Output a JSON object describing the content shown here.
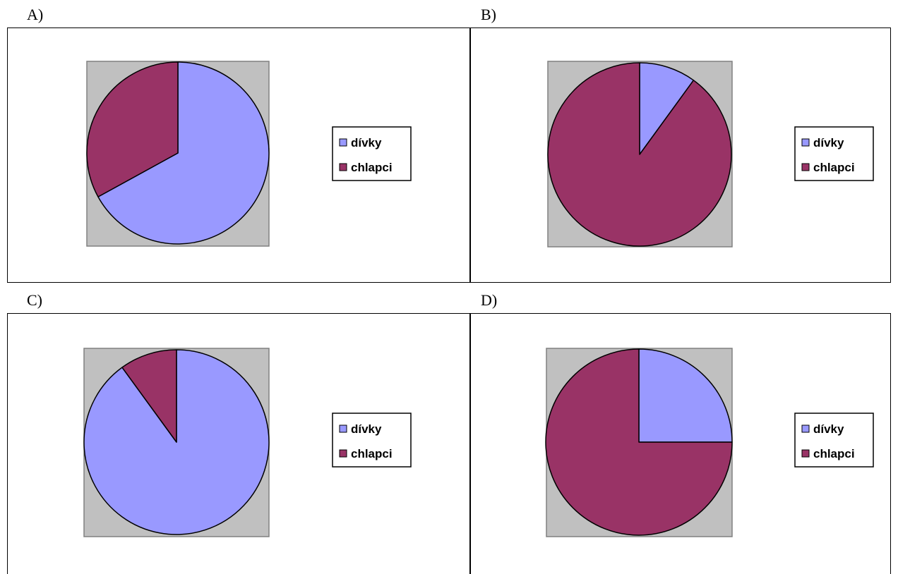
{
  "panels": [
    {
      "label": "A)"
    },
    {
      "label": "B)"
    },
    {
      "label": "C)"
    },
    {
      "label": "D)"
    }
  ],
  "colors": {
    "divky": "#9999ff",
    "chlapci": "#993366",
    "plot_area": "#c0c0c0"
  },
  "chart_data": [
    {
      "type": "pie",
      "panel": "A)",
      "categories": [
        "dívky",
        "chlapci"
      ],
      "values": [
        67,
        33
      ],
      "colors": [
        "#9999ff",
        "#993366"
      ],
      "legend": {
        "entries": [
          "dívky",
          "chlapci"
        ],
        "position": "right"
      },
      "start_angle": "12 o'clock",
      "direction": "clockwise"
    },
    {
      "type": "pie",
      "panel": "B)",
      "categories": [
        "dívky",
        "chlapci"
      ],
      "values": [
        10,
        90
      ],
      "colors": [
        "#9999ff",
        "#993366"
      ],
      "legend": {
        "entries": [
          "dívky",
          "chlapci"
        ],
        "position": "right"
      },
      "start_angle": "12 o'clock",
      "direction": "clockwise"
    },
    {
      "type": "pie",
      "panel": "C)",
      "categories": [
        "dívky",
        "chlapci"
      ],
      "values": [
        90,
        10
      ],
      "colors": [
        "#9999ff",
        "#993366"
      ],
      "legend": {
        "entries": [
          "dívky",
          "chlapci"
        ],
        "position": "right"
      },
      "start_angle": "12 o'clock",
      "direction": "clockwise"
    },
    {
      "type": "pie",
      "panel": "D)",
      "categories": [
        "dívky",
        "chlapci"
      ],
      "values": [
        25,
        75
      ],
      "colors": [
        "#9999ff",
        "#993366"
      ],
      "legend": {
        "entries": [
          "dívky",
          "chlapci"
        ],
        "position": "right"
      },
      "start_angle": "12 o'clock",
      "direction": "clockwise"
    }
  ]
}
